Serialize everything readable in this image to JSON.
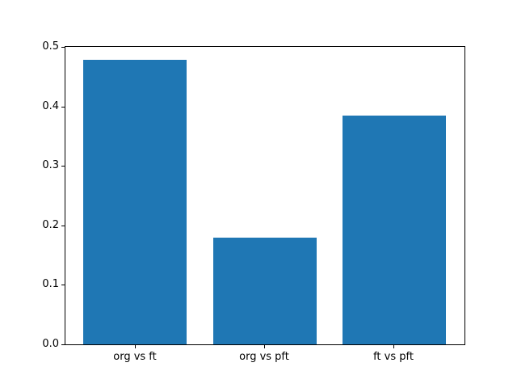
{
  "figure": {
    "background_color": "#ffffff",
    "axis_color": "#000000",
    "text_color": "#000000"
  },
  "chart_data": {
    "type": "bar",
    "title": "",
    "xlabel": "",
    "ylabel": "",
    "categories": [
      "org vs ft",
      "org vs pft",
      "ft vs pft"
    ],
    "values": [
      0.478,
      0.179,
      0.385
    ],
    "bar_color": "#1f77b4",
    "bar_width_fraction": 0.8,
    "ylim": [
      0.0,
      0.5
    ],
    "yticks": [
      0.0,
      0.1,
      0.2,
      0.3,
      0.4,
      0.5
    ],
    "ytick_labels": [
      "0.0",
      "0.1",
      "0.2",
      "0.3",
      "0.4",
      "0.5"
    ],
    "grid": false,
    "legend": "none"
  }
}
